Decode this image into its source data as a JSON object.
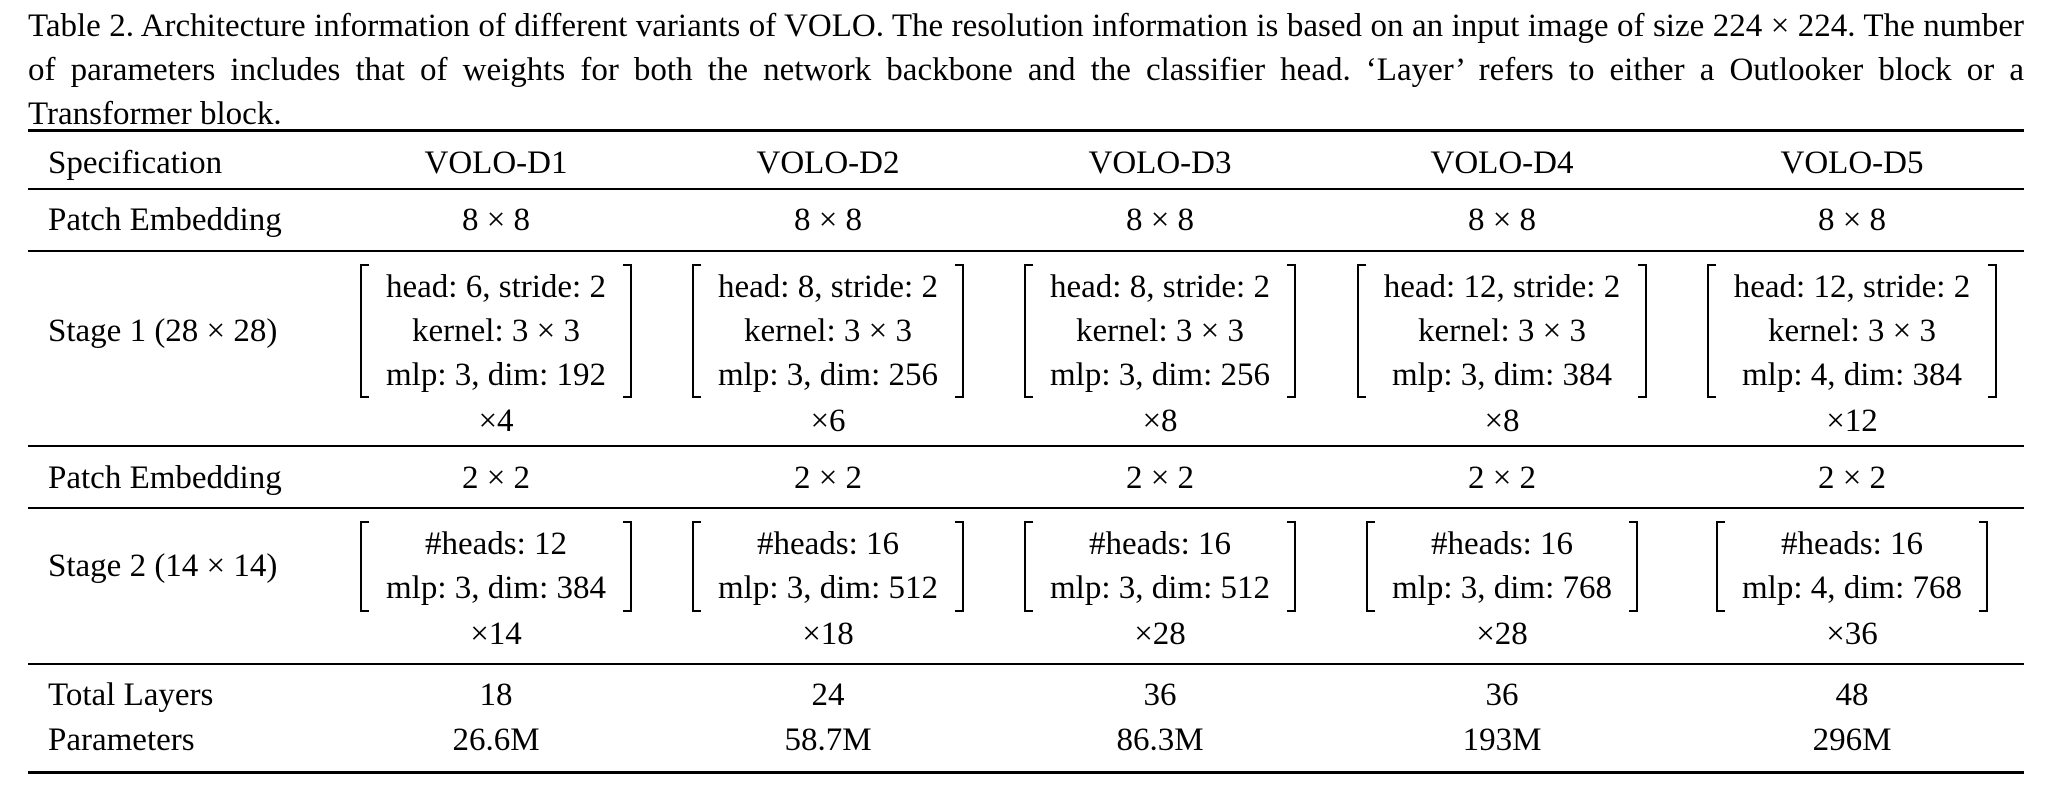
{
  "caption": "Table 2. Architecture information of different variants of VOLO. The resolution information is based on an input image of size 224 × 224. The number of parameters includes that of weights for both the network backbone and the classifier head.  ‘Layer’ refers to either a Outlooker block or a Transformer block.",
  "table": {
    "header": {
      "spec": "Specification",
      "models": [
        "VOLO-D1",
        "VOLO-D2",
        "VOLO-D3",
        "VOLO-D4",
        "VOLO-D5"
      ]
    },
    "patch_embedding_1": {
      "label": "Patch Embedding",
      "values": [
        "8 × 8",
        "8 × 8",
        "8 × 8",
        "8 × 8",
        "8 × 8"
      ]
    },
    "stage1": {
      "label": "Stage 1 (28 × 28)",
      "cells": [
        {
          "lines": [
            "head: 6, stride: 2",
            "kernel: 3 × 3",
            "mlp: 3, dim: 192"
          ],
          "repeat": "×4"
        },
        {
          "lines": [
            "head: 8, stride: 2",
            "kernel: 3 × 3",
            "mlp: 3, dim: 256"
          ],
          "repeat": "×6"
        },
        {
          "lines": [
            "head: 8, stride: 2",
            "kernel: 3 × 3",
            "mlp: 3, dim: 256"
          ],
          "repeat": "×8"
        },
        {
          "lines": [
            "head: 12, stride: 2",
            "kernel: 3 × 3",
            "mlp: 3, dim: 384"
          ],
          "repeat": "×8"
        },
        {
          "lines": [
            "head: 12, stride: 2",
            "kernel: 3 × 3",
            "mlp: 4, dim: 384"
          ],
          "repeat": "×12"
        }
      ]
    },
    "patch_embedding_2": {
      "label": "Patch Embedding",
      "values": [
        "2 × 2",
        "2 × 2",
        "2 × 2",
        "2 × 2",
        "2 × 2"
      ]
    },
    "stage2": {
      "label": "Stage 2 (14 × 14)",
      "cells": [
        {
          "lines": [
            "#heads: 12",
            "mlp: 3, dim: 384"
          ],
          "repeat": "×14"
        },
        {
          "lines": [
            "#heads: 16",
            "mlp: 3, dim: 512"
          ],
          "repeat": "×18"
        },
        {
          "lines": [
            "#heads: 16",
            "mlp: 3, dim: 512"
          ],
          "repeat": "×28"
        },
        {
          "lines": [
            "#heads: 16",
            "mlp: 3, dim: 768"
          ],
          "repeat": "×28"
        },
        {
          "lines": [
            "#heads: 16",
            "mlp: 4, dim: 768"
          ],
          "repeat": "×36"
        }
      ]
    },
    "total_layers": {
      "label": "Total Layers",
      "values": [
        "18",
        "24",
        "36",
        "36",
        "48"
      ]
    },
    "parameters": {
      "label": "Parameters",
      "values": [
        "26.6M",
        "58.7M",
        "86.3M",
        "193M",
        "296M"
      ]
    }
  }
}
